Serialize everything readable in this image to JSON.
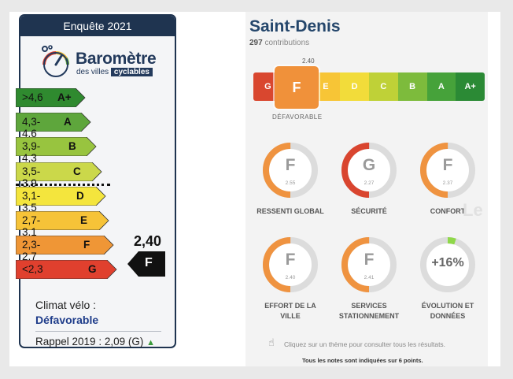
{
  "barometer": {
    "header": "Enquête 2021",
    "logo_title": "Baromètre",
    "logo_sub_plain": "des villes",
    "logo_sub_tag": "cyclables",
    "scale": [
      {
        "range": ">4,6",
        "letter": "A+",
        "color": "#2f8a2f"
      },
      {
        "range": "4,3-4,6",
        "letter": "A",
        "color": "#5ea63c"
      },
      {
        "range": "3,9-4,3",
        "letter": "B",
        "color": "#98c43f"
      },
      {
        "range": "3,5-3,9",
        "letter": "C",
        "color": "#cbd84a"
      },
      {
        "range": "3,1-3,5",
        "letter": "D",
        "color": "#f4e53d"
      },
      {
        "range": "2,7-3,1",
        "letter": "E",
        "color": "#f6c338"
      },
      {
        "range": "2,3-2,7",
        "letter": "F",
        "color": "#ef9636"
      },
      {
        "range": "<2,3",
        "letter": "G",
        "color": "#e0402e"
      }
    ],
    "score": "2,40",
    "grade": "F",
    "climat_label": "Climat vélo :",
    "climat_value": "Défavorable",
    "rappel": "Rappel 2019 : 2,09 (G)"
  },
  "city": {
    "name": "Saint-Denis",
    "contributions_count": "297",
    "contributions_label": "contributions",
    "grades": [
      {
        "letter": "G",
        "color": "#d9472f"
      },
      {
        "letter": "F",
        "color": "#ef8c34"
      },
      {
        "letter": "E",
        "color": "#f7c536"
      },
      {
        "letter": "D",
        "color": "#f2dc3a"
      },
      {
        "letter": "C",
        "color": "#bfd137"
      },
      {
        "letter": "B",
        "color": "#7dbb3c"
      },
      {
        "letter": "A",
        "color": "#46a23a"
      },
      {
        "letter": "A+",
        "color": "#2b8a35"
      }
    ],
    "selected_grade": "F",
    "selected_value": "2.40",
    "selected_label": "DÉFAVORABLE",
    "themes": [
      {
        "letter": "F",
        "value": "2.55",
        "label": "RESSENTI GLOBAL",
        "level": 0.42,
        "color": "#ef9340"
      },
      {
        "letter": "G",
        "value": "2.27",
        "label": "SÉCURITÉ",
        "level": 0.38,
        "color": "#d9452f"
      },
      {
        "letter": "F",
        "value": "2.37",
        "label": "CONFORT",
        "level": 0.4,
        "color": "#ef9340"
      },
      {
        "letter": "F",
        "value": "2.40",
        "label": "EFFORT DE LA VILLE",
        "level": 0.4,
        "color": "#ef9340"
      },
      {
        "letter": "F",
        "value": "2.41",
        "label": "SERVICES STATIONNEMENT",
        "level": 0.4,
        "color": "#ef9340"
      },
      {
        "letter": "",
        "value": "+16%",
        "label": "ÉVOLUTION ET DONNÉES",
        "level": 0.05,
        "color": "#8fd84a"
      }
    ],
    "hint": "Cliquez sur un thème pour consulter tous les résultats.",
    "note": "Tous les notes sont indiquées sur 6 points."
  }
}
